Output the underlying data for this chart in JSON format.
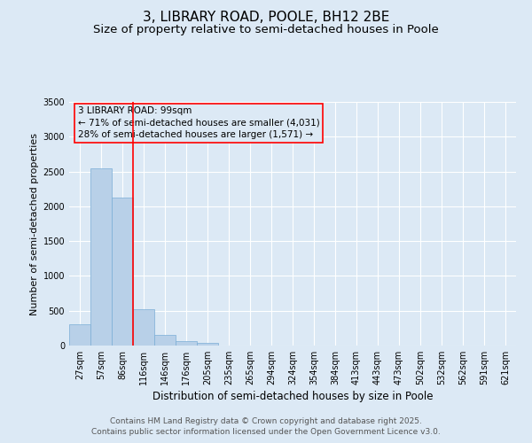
{
  "title": "3, LIBRARY ROAD, POOLE, BH12 2BE",
  "subtitle": "Size of property relative to semi-detached houses in Poole",
  "xlabel": "Distribution of semi-detached houses by size in Poole",
  "ylabel": "Number of semi-detached properties",
  "categories": [
    "27sqm",
    "57sqm",
    "86sqm",
    "116sqm",
    "146sqm",
    "176sqm",
    "205sqm",
    "235sqm",
    "265sqm",
    "294sqm",
    "324sqm",
    "354sqm",
    "384sqm",
    "413sqm",
    "443sqm",
    "473sqm",
    "502sqm",
    "532sqm",
    "562sqm",
    "591sqm",
    "621sqm"
  ],
  "values": [
    300,
    2540,
    2120,
    520,
    150,
    65,
    35,
    0,
    0,
    0,
    0,
    0,
    0,
    0,
    0,
    0,
    0,
    0,
    0,
    0,
    0
  ],
  "bar_color": "#b8d0e8",
  "bar_edge_color": "#7aaed6",
  "background_color": "#dce9f5",
  "annotation_box_text": "3 LIBRARY ROAD: 99sqm\n← 71% of semi-detached houses are smaller (4,031)\n28% of semi-detached houses are larger (1,571) →",
  "property_line_bar_index": 2,
  "ylim": [
    0,
    3500
  ],
  "yticks": [
    0,
    500,
    1000,
    1500,
    2000,
    2500,
    3000,
    3500
  ],
  "footer_line1": "Contains HM Land Registry data © Crown copyright and database right 2025.",
  "footer_line2": "Contains public sector information licensed under the Open Government Licence v3.0.",
  "title_fontsize": 11,
  "subtitle_fontsize": 9.5,
  "tick_fontsize": 7,
  "ylabel_fontsize": 8,
  "xlabel_fontsize": 8.5,
  "annotation_fontsize": 7.5,
  "footer_fontsize": 6.5
}
